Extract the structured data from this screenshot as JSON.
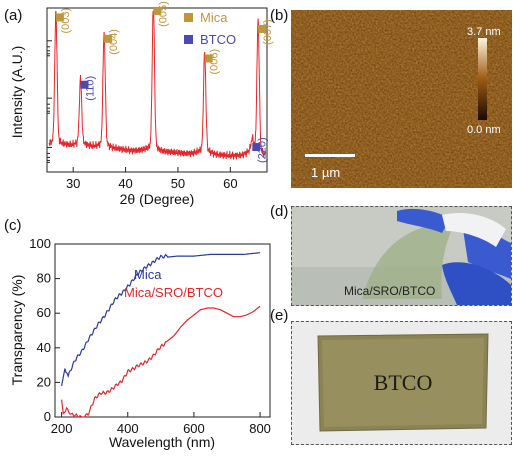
{
  "panel_labels": [
    "(a)",
    "(b)",
    "(c)",
    "(d)",
    "(e)"
  ],
  "afm": {
    "colorbar_max": "3.7 nm",
    "colorbar_min": "0.0 nm",
    "scale_bar_label": "1 µm",
    "colors": {
      "dark": "#1a0a00",
      "mid": "#9c5a12",
      "light": "#fff4dc"
    }
  },
  "photo_d": {
    "caption": "Mica/SRO/BTCO"
  },
  "photo_e": {
    "sample_text": "BTCO"
  },
  "chart_data": [
    {
      "type": "line",
      "panel": "(a)",
      "xlabel": "2θ (Degree)",
      "ylabel": "Intensity (A.U.)",
      "xlim": [
        25,
        67
      ],
      "x_ticks": [
        30,
        40,
        50,
        60
      ],
      "y_scale": "log",
      "line_color": "#e8262a",
      "legend": {
        "position": "top-right",
        "entries": [
          {
            "name": "Mica",
            "color": "#c0963a",
            "marker": "square"
          },
          {
            "name": "BTCO",
            "color": "#4a4ab0",
            "marker": "square"
          }
        ]
      },
      "peaks": [
        {
          "x": 26.7,
          "height": 0.93,
          "label": "(003)",
          "phase": "Mica"
        },
        {
          "x": 31.4,
          "height": 0.52,
          "label": "(110)",
          "phase": "BTCO"
        },
        {
          "x": 35.9,
          "height": 0.8,
          "label": "(004)",
          "phase": "Mica"
        },
        {
          "x": 45.3,
          "height": 0.97,
          "label": "(005)",
          "phase": "Mica"
        },
        {
          "x": 55.1,
          "height": 0.68,
          "label": "(006)",
          "phase": "Mica"
        },
        {
          "x": 64.2,
          "height": 0.14,
          "label": "(220)",
          "phase": "BTCO"
        },
        {
          "x": 65.3,
          "height": 0.86,
          "label": "(007)",
          "phase": "Mica"
        }
      ]
    },
    {
      "type": "line",
      "panel": "(c)",
      "xlabel": "Wavelength (nm)",
      "ylabel": "Transparency (%)",
      "xlim": [
        180,
        830
      ],
      "ylim": [
        0,
        100
      ],
      "x_ticks": [
        200,
        400,
        600,
        800
      ],
      "y_ticks": [
        0,
        20,
        40,
        60,
        80,
        100
      ],
      "series": [
        {
          "name": "Mica",
          "color": "#2b3a9e",
          "x": [
            200,
            210,
            220,
            240,
            260,
            280,
            300,
            320,
            340,
            360,
            380,
            400,
            420,
            440,
            460,
            480,
            500,
            550,
            600,
            650,
            700,
            750,
            800
          ],
          "y": [
            18,
            28,
            24,
            32,
            38,
            45,
            50,
            56,
            62,
            67,
            71,
            76,
            80,
            84,
            88,
            90,
            92,
            93,
            93,
            94,
            94,
            94,
            95
          ]
        },
        {
          "name": "Mica/SRO/BTCO",
          "color": "#e8262a",
          "x": [
            200,
            205,
            215,
            230,
            250,
            270,
            280,
            300,
            320,
            340,
            360,
            380,
            400,
            420,
            440,
            460,
            480,
            500,
            520,
            540,
            560,
            580,
            600,
            620,
            640,
            660,
            680,
            700,
            720,
            740,
            760,
            780,
            800
          ],
          "y": [
            10,
            2,
            4,
            1,
            0,
            0,
            2,
            10,
            14,
            15,
            17,
            20,
            27,
            28,
            30,
            33,
            36,
            40,
            44,
            47,
            52,
            56,
            59,
            62,
            63,
            63,
            62,
            60,
            58,
            58,
            59,
            61,
            64
          ]
        }
      ]
    }
  ]
}
